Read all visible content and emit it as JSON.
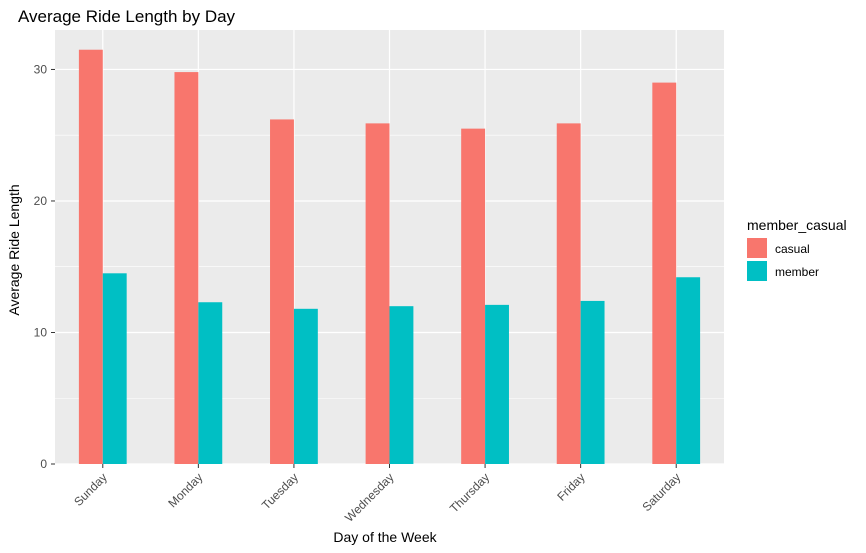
{
  "chart_data": {
    "type": "bar",
    "title": "Average Ride Length by Day",
    "xlabel": "Day of the Week",
    "ylabel": "Average Ride Length",
    "categories": [
      "Sunday",
      "Monday",
      "Tuesday",
      "Wednesday",
      "Thursday",
      "Friday",
      "Saturday"
    ],
    "series": [
      {
        "name": "casual",
        "values": [
          31.5,
          29.8,
          26.2,
          25.9,
          25.5,
          25.9,
          29.0
        ],
        "color": "#F8766D"
      },
      {
        "name": "member",
        "values": [
          14.5,
          12.3,
          11.8,
          12.0,
          12.1,
          12.4,
          14.2
        ],
        "color": "#00BFC4"
      }
    ],
    "ylim": [
      0,
      33
    ],
    "yticks": [
      0,
      10,
      20,
      30
    ],
    "legend": {
      "title": "member_casual",
      "position": "right"
    },
    "panel_background": "#EBEBEB",
    "grid_color": "#FFFFFF",
    "grid": true
  }
}
